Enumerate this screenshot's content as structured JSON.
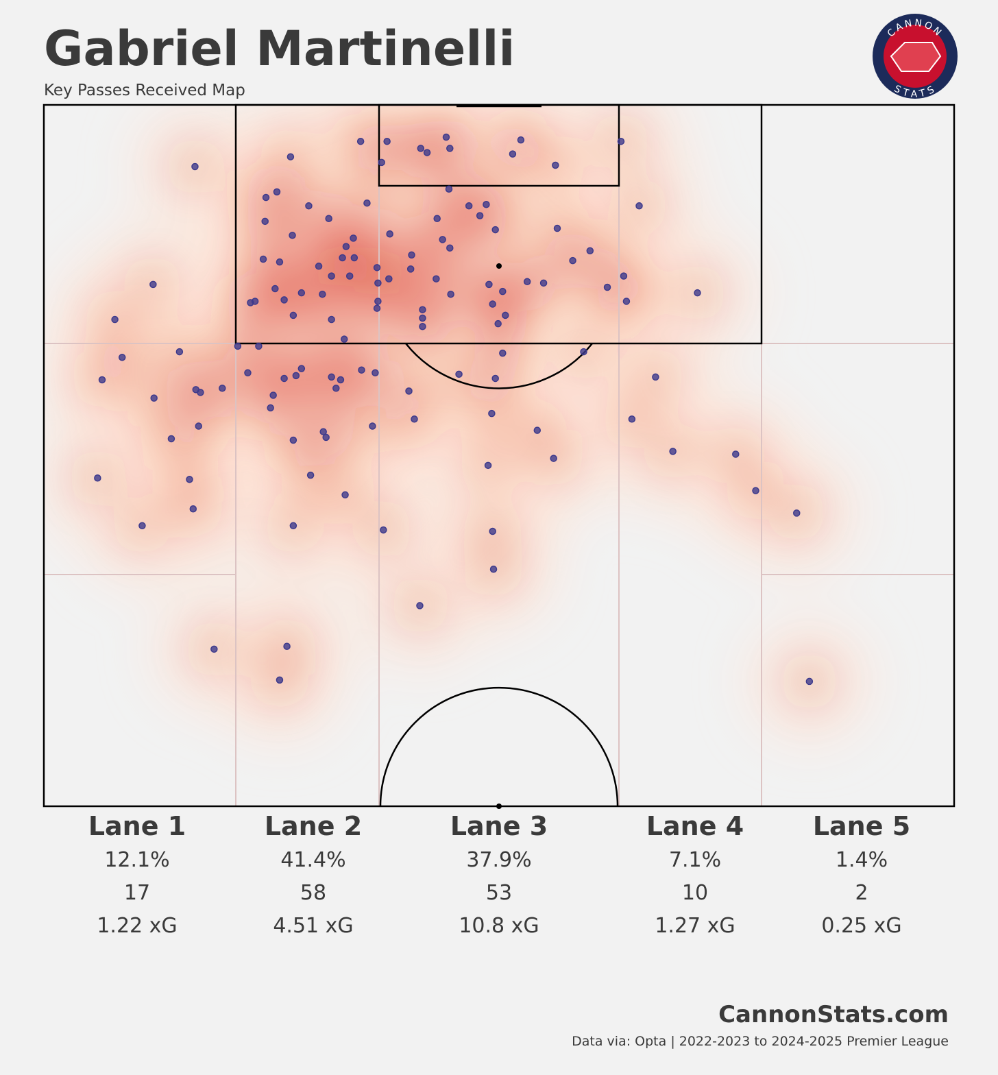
{
  "header": {
    "title": "Gabriel Martinelli",
    "subtitle": "Key Passes Received Map"
  },
  "logo": {
    "top": "CANNON",
    "bottom": "STATS"
  },
  "chart_data": {
    "type": "scatter",
    "color": "#3d3a8c",
    "xlim": [
      0,
      100
    ],
    "ylim": [
      50,
      100
    ],
    "x": [
      16.6,
      12.0,
      7.8,
      8.6,
      6.4,
      14.9,
      12.1,
      16.7,
      17.2,
      19.6,
      17.0,
      14.0,
      5.9,
      16.0,
      16.4,
      10.8,
      18.7,
      26.7,
      25.9,
      27.1,
      25.6,
      24.4,
      24.3,
      29.1,
      27.3,
      24.1,
      25.9,
      25.4,
      23.2,
      22.7,
      26.4,
      27.4,
      28.3,
      21.3,
      23.6,
      34.8,
      37.7,
      37.1,
      35.5,
      31.3,
      33.2,
      34.0,
      32.8,
      34.1,
      30.2,
      31.6,
      33.6,
      36.6,
      36.7,
      37.9,
      30.6,
      31.6,
      36.7,
      36.6,
      38.0,
      33.0,
      28.3,
      26.4,
      27.7,
      22.4,
      31.6,
      32.6,
      34.9,
      36.4,
      32.1,
      25.2,
      24.9,
      27.4,
      30.7,
      31.0,
      36.1,
      29.3,
      33.1,
      27.4,
      37.3,
      41.4,
      42.1,
      44.2,
      44.6,
      44.5,
      51.5,
      52.4,
      56.2,
      63.4,
      46.7,
      48.6,
      47.9,
      43.2,
      49.6,
      43.8,
      44.6,
      40.4,
      40.3,
      43.1,
      41.6,
      41.6,
      41.6,
      44.7,
      48.9,
      50.4,
      49.3,
      50.7,
      49.9,
      53.1,
      54.9,
      56.4,
      58.1,
      60.0,
      61.9,
      63.7,
      64.0,
      65.4,
      59.3,
      45.6,
      49.6,
      50.4,
      40.1,
      40.7,
      49.2,
      54.2,
      56.0,
      48.8,
      49.3,
      49.4,
      41.3,
      67.2,
      64.6,
      69.1,
      71.8,
      76.0,
      78.2,
      82.7,
      84.1
    ],
    "y": [
      95.6,
      87.2,
      84.7,
      82.0,
      80.4,
      82.4,
      79.1,
      79.7,
      79.5,
      79.8,
      77.1,
      76.2,
      73.4,
      73.3,
      71.2,
      70.0,
      61.2,
      61.4,
      59.0,
      96.3,
      93.8,
      93.4,
      91.7,
      92.8,
      90.7,
      89.0,
      88.8,
      86.9,
      86.0,
      85.9,
      86.1,
      85.0,
      86.6,
      82.8,
      82.8,
      97.4,
      97.4,
      95.9,
      93.0,
      91.9,
      89.9,
      90.5,
      89.1,
      89.1,
      88.5,
      87.8,
      87.8,
      88.4,
      87.3,
      87.6,
      86.5,
      84.7,
      86.0,
      85.5,
      90.8,
      83.3,
      81.2,
      80.5,
      80.7,
      80.9,
      80.6,
      80.4,
      81.1,
      80.9,
      79.8,
      79.3,
      78.4,
      76.1,
      76.7,
      76.3,
      77.1,
      73.6,
      72.2,
      70.0,
      69.7,
      96.9,
      96.6,
      97.7,
      96.9,
      94.0,
      96.5,
      97.5,
      95.7,
      97.4,
      92.8,
      92.9,
      92.1,
      91.9,
      91.1,
      90.4,
      89.8,
      89.3,
      88.3,
      87.6,
      85.4,
      84.8,
      84.2,
      86.5,
      87.2,
      86.7,
      85.8,
      85.0,
      84.4,
      87.4,
      87.3,
      91.2,
      88.9,
      89.6,
      87.0,
      87.8,
      86.0,
      92.8,
      82.4,
      80.8,
      80.5,
      82.3,
      79.6,
      77.6,
      78.0,
      76.8,
      74.8,
      74.3,
      69.6,
      66.9,
      64.3,
      80.6,
      77.6,
      75.3,
      86.6,
      75.1,
      72.5,
      70.9,
      58.9
    ]
  },
  "lanes": [
    {
      "name": "Lane 1",
      "share": "12.1%",
      "count": "17",
      "xg": "1.22 xG"
    },
    {
      "name": "Lane 2",
      "share": "41.4%",
      "count": "58",
      "xg": "4.51 xG"
    },
    {
      "name": "Lane 3",
      "share": "37.9%",
      "count": "53",
      "xg": "10.8 xG"
    },
    {
      "name": "Lane 4",
      "share": "7.1%",
      "count": "10",
      "xg": "1.27 xG"
    },
    {
      "name": "Lane 5",
      "share": "1.4%",
      "count": "2",
      "xg": "0.25 xG"
    }
  ],
  "footer": {
    "site": "CannonStats.com",
    "source": "Data via: Opta | 2022-2023 to 2024-2025 Premier League"
  }
}
